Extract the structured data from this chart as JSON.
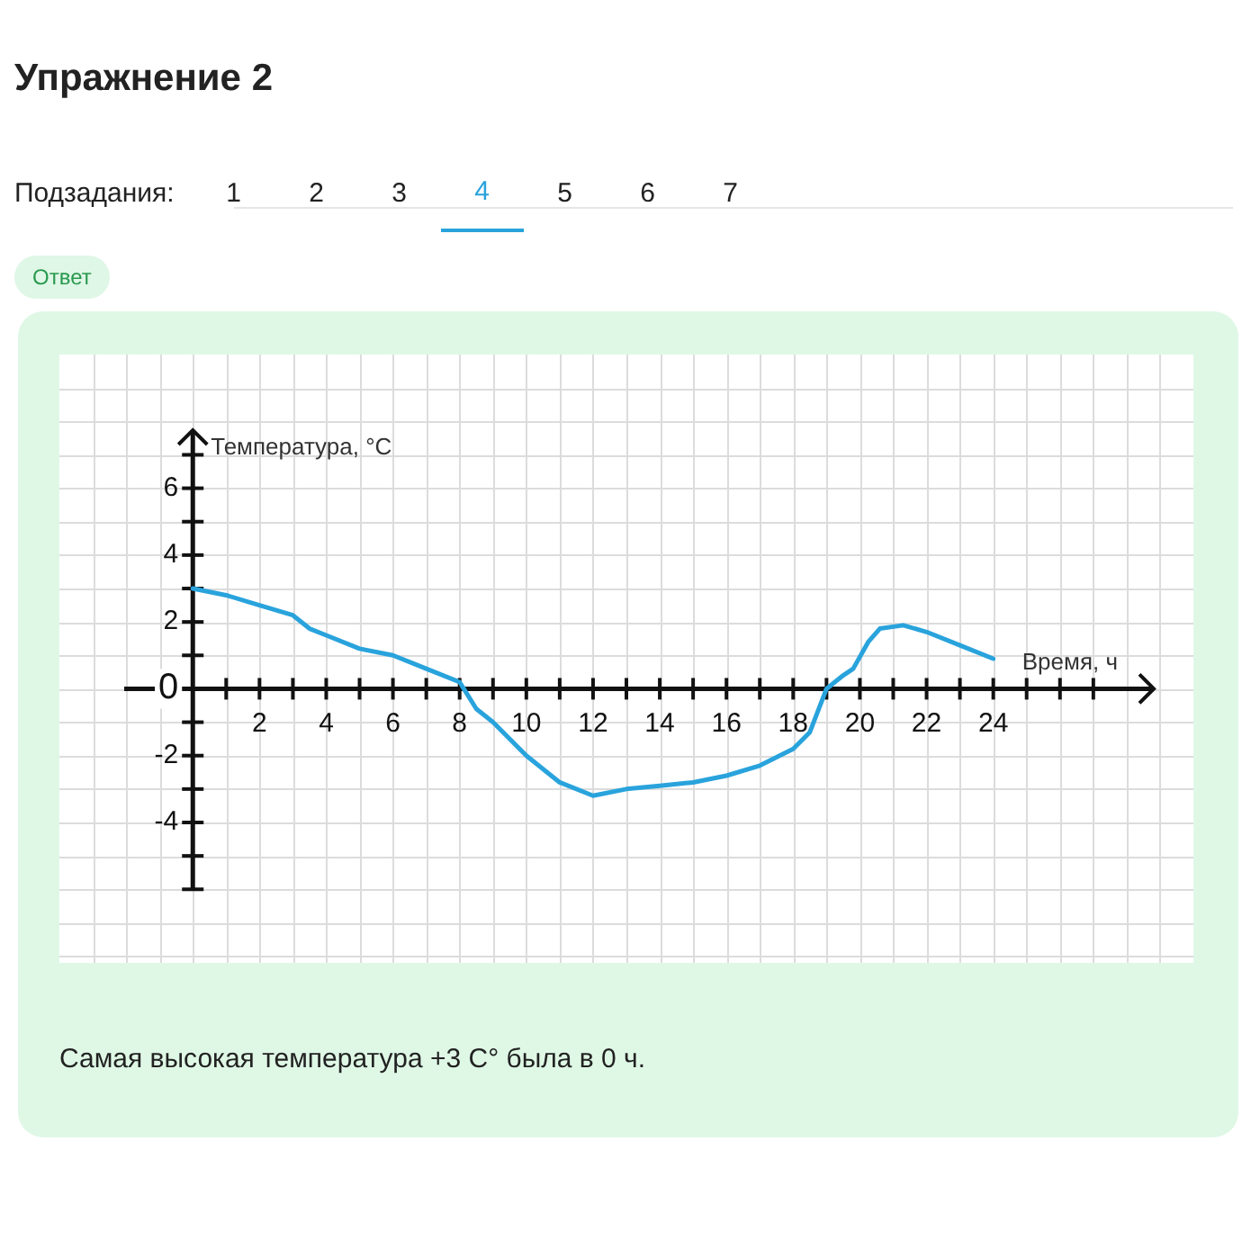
{
  "chart_data": {
    "type": "line",
    "title": "Упражнение 2",
    "xlabel": "Время, ч",
    "ylabel": "Температура, °C",
    "annotations": [
      "Подзадания:",
      "1",
      "2",
      "3",
      "4",
      "5",
      "6",
      "7",
      "Ответ",
      "Самая высокая температура +3 С° была в 0 ч."
    ],
    "x": [
      0,
      1,
      2,
      3,
      3.5,
      4,
      5,
      6,
      7,
      8,
      8.5,
      9,
      10,
      11,
      12,
      13,
      14,
      15,
      16,
      17,
      18,
      18.5,
      19,
      19.5,
      19.8,
      20.25,
      20.6,
      21.3,
      22,
      23,
      24
    ],
    "series": [
      {
        "color": "#29a3dc",
        "values": [
          3,
          2.8,
          2.5,
          2.2,
          1.8,
          1.6,
          1.2,
          1,
          0.6,
          0.2,
          -0.6,
          -1,
          -2,
          -2.8,
          -3.2,
          -3,
          -2.9,
          -2.8,
          -2.6,
          -2.3,
          -1.8,
          -1.3,
          0,
          0.4,
          0.6,
          1.4,
          1.8,
          1.9,
          1.7,
          1.3,
          0.9
        ]
      }
    ],
    "xlim": [
      -4,
      30
    ],
    "ylim": [
      -8.2,
      10
    ],
    "xticks": [
      {
        "value": -3,
        "label": null
      },
      {
        "value": -2,
        "label": null
      },
      {
        "value": -1,
        "label": null
      },
      {
        "value": 0,
        "label": null
      },
      {
        "value": 1,
        "label": null
      },
      2,
      {
        "value": 3,
        "label": null
      },
      4,
      {
        "value": 5,
        "label": null
      },
      6,
      {
        "value": 7,
        "label": null
      },
      8,
      {
        "value": 9,
        "label": null
      },
      10,
      {
        "value": 11,
        "label": null
      },
      12,
      {
        "value": 13,
        "label": null
      },
      14,
      {
        "value": 15,
        "label": null
      },
      16,
      {
        "value": 17,
        "label": null
      },
      18,
      {
        "value": 19,
        "label": null
      },
      20,
      {
        "value": 21,
        "label": null
      },
      22,
      {
        "value": 23,
        "label": null
      },
      24,
      {
        "value": 25,
        "label": null
      },
      {
        "value": 26,
        "label": null
      },
      {
        "value": 27,
        "label": null
      },
      {
        "value": 28,
        "label": null
      },
      {
        "value": 29,
        "label": null
      }
    ],
    "yticks": [
      {
        "value": -8,
        "label": null
      },
      {
        "value": -7,
        "label": null
      },
      {
        "value": -6,
        "label": null
      },
      {
        "value": -5,
        "label": null
      },
      -4,
      {
        "value": -3,
        "label": null
      },
      -2,
      {
        "value": -1,
        "label": null
      },
      0,
      {
        "value": 1,
        "label": null
      },
      2,
      {
        "value": 3,
        "label": null
      },
      4,
      {
        "value": 5,
        "label": null
      },
      6,
      {
        "value": 7,
        "label": null
      },
      {
        "value": 8,
        "label": null
      },
      {
        "value": 9,
        "label": null
      }
    ],
    "grid": true,
    "marker": "none",
    "line_style": "solid",
    "legend": false
  }
}
